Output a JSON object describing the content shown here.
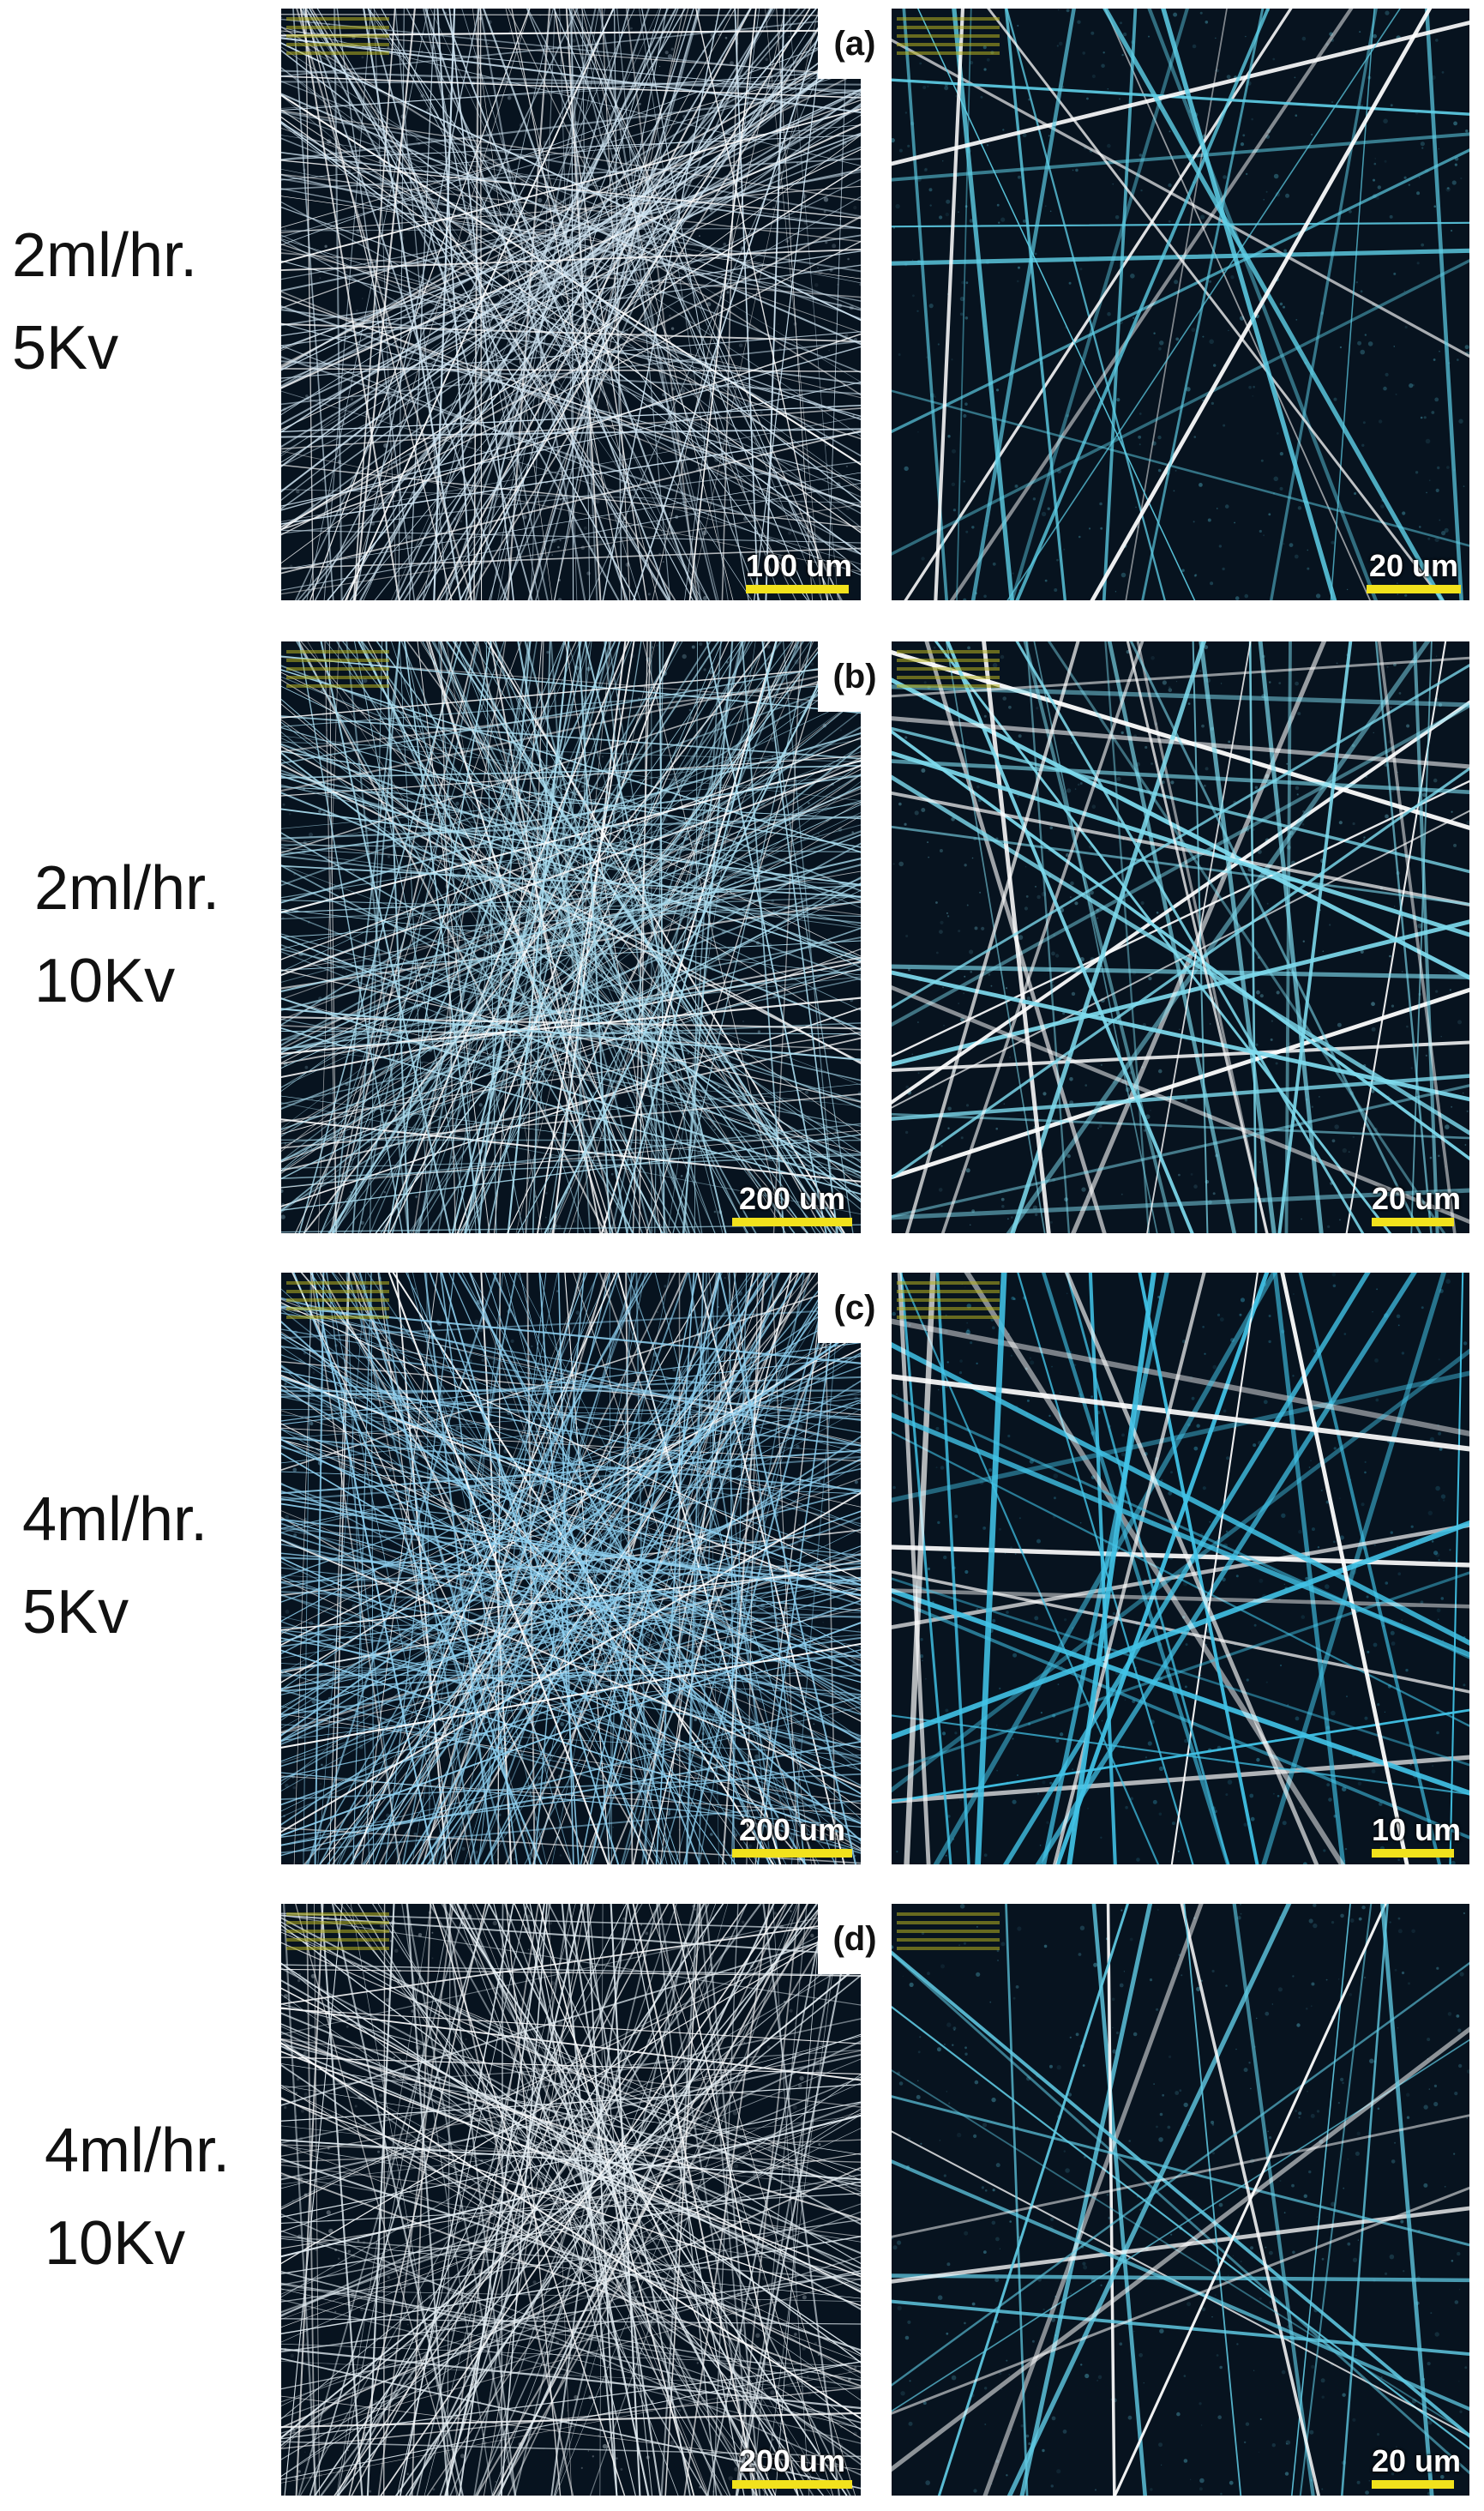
{
  "rows": [
    {
      "tag": "(a)",
      "condition": [
        "2ml/hr.",
        "5Kv"
      ],
      "left_scale": "100 um",
      "right_scale": "20 um",
      "left_tint": "#cfe4f2",
      "right_tint": "#5fd0e8"
    },
    {
      "tag": "(b)",
      "condition": [
        "2ml/hr.",
        "10Kv"
      ],
      "left_scale": "200 um",
      "right_scale": "20 um",
      "left_tint": "#a9dcef",
      "right_tint": "#7fdcef"
    },
    {
      "tag": "(c)",
      "condition": [
        "4ml/hr.",
        "5Kv"
      ],
      "left_scale": "200 um",
      "right_scale": "10 um",
      "left_tint": "#8fd0f0",
      "right_tint": "#42c4e8"
    },
    {
      "tag": "(d)",
      "condition": [
        "4ml/hr.",
        "10Kv"
      ],
      "left_scale": "200 um",
      "right_scale": "20 um",
      "left_tint": "#e2ecf2",
      "right_tint": "#62cde6"
    }
  ],
  "colors": {
    "background": "#07131f",
    "scale_bar": "#f2e21c"
  }
}
